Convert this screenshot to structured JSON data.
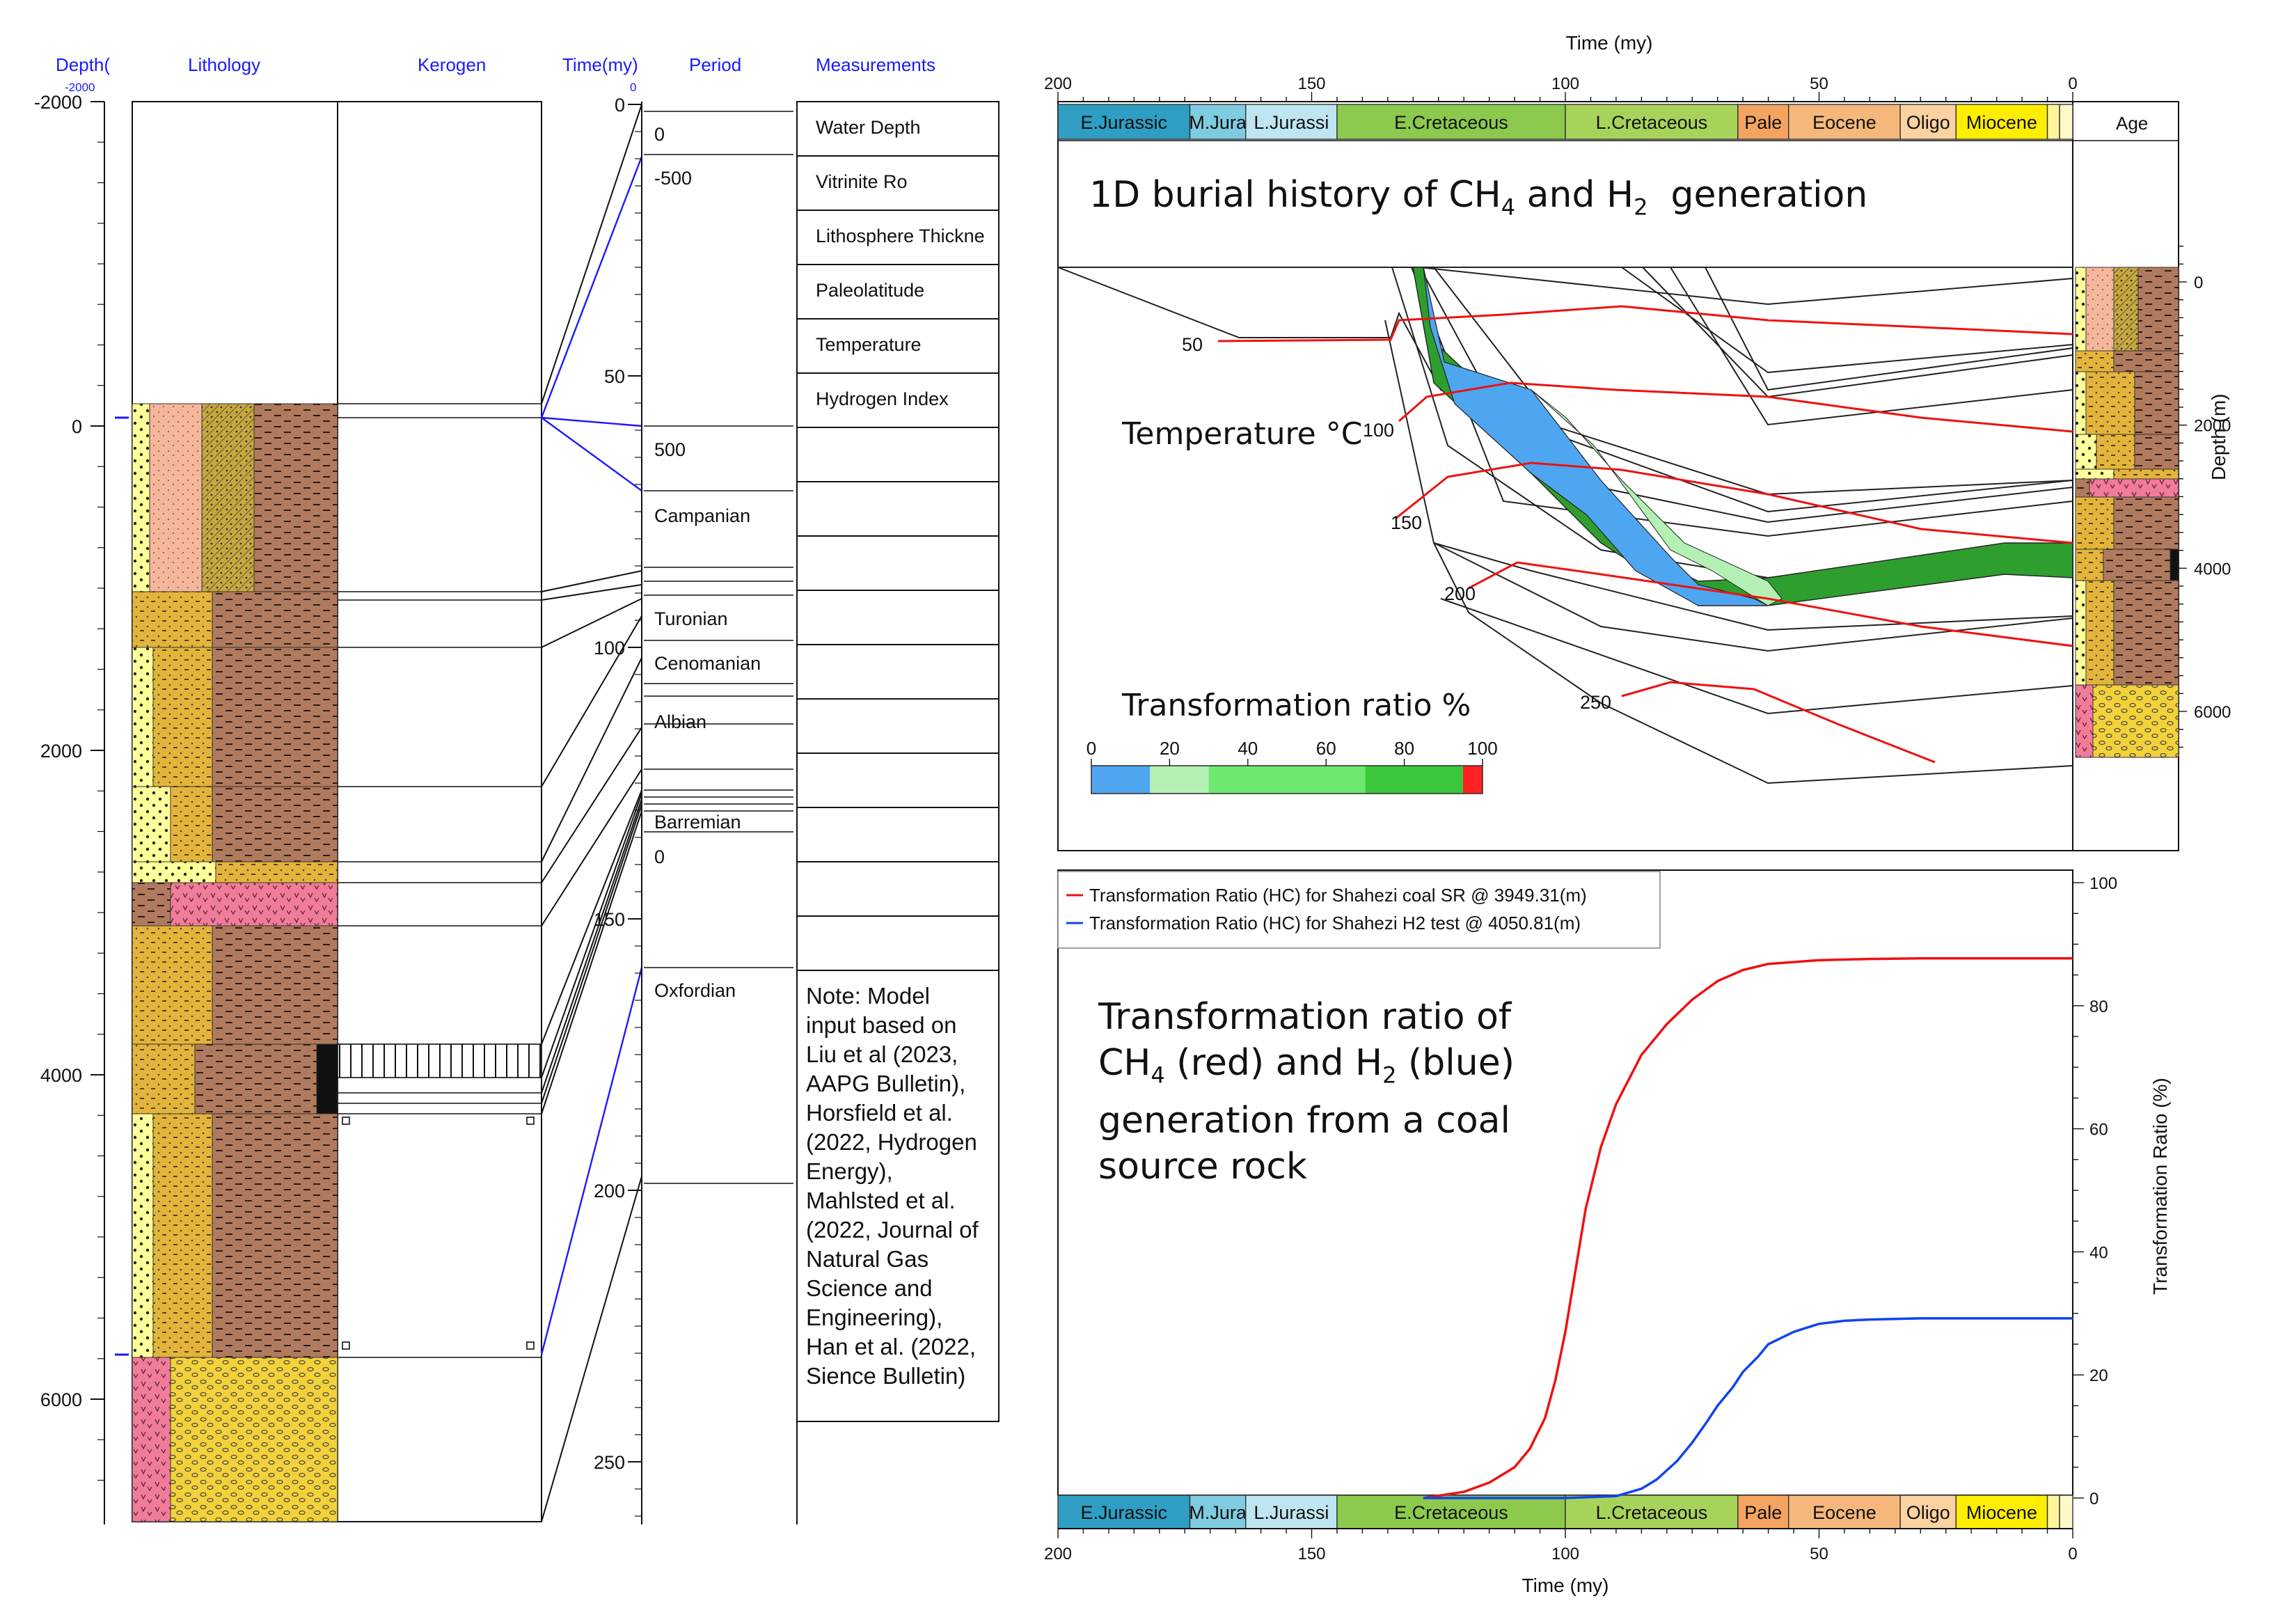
{
  "headers": {
    "depth": "Depth(",
    "depth_sub": "-2000",
    "lithology": "Lithology",
    "kerogen": "Kerogen",
    "time": "Time(my)",
    "time_sub": "0",
    "period": "Period",
    "measurements": "Measurements"
  },
  "depth_ticks": [
    "-2000",
    "0",
    "2000",
    "4000",
    "6000"
  ],
  "time_ticks": [
    "0",
    "50",
    "100",
    "150",
    "200",
    "250"
  ],
  "period_labels": [
    "0",
    "-500",
    "500",
    "Campanian",
    "Turonian",
    "Cenomanian",
    "Albian",
    "Barremian",
    "0",
    "Oxfordian"
  ],
  "measurements": [
    "Water Depth",
    "Vitrinite Ro",
    "Lithosphere Thickne",
    "Paleolatitude",
    "Temperature",
    "Hydrogen Index"
  ],
  "note": [
    "Note: Model",
    "input based on",
    "Liu et al (2023,",
    "AAPG Bulletin),",
    "Horsfield et al.",
    "(2022, Hydrogen",
    "Energy),",
    "Mahlsted et al.",
    "(2022, Journal of",
    "Natural Gas",
    "Science and",
    "Engineering),",
    "Han et al. (2022,",
    "Sience Bulletin)"
  ],
  "ages": [
    {
      "name": "E.Jurassic",
      "from": 200,
      "to": 174,
      "color": "#2e9ec4"
    },
    {
      "name": "M.Jura",
      "from": 174,
      "to": 163,
      "color": "#7fcbe0"
    },
    {
      "name": "L.Jurassi",
      "from": 163,
      "to": 145,
      "color": "#bfe6f0"
    },
    {
      "name": "E.Cretaceous",
      "from": 145,
      "to": 100,
      "color": "#8cc94c"
    },
    {
      "name": "L.Cretaceous",
      "from": 100,
      "to": 66,
      "color": "#a8d35a"
    },
    {
      "name": "Pale",
      "from": 66,
      "to": 56,
      "color": "#f4a460"
    },
    {
      "name": "Eocene",
      "from": 56,
      "to": 34,
      "color": "#f6b87a"
    },
    {
      "name": "Oligo",
      "from": 34,
      "to": 23,
      "color": "#fbd2a0"
    },
    {
      "name": "Miocene",
      "from": 23,
      "to": 5,
      "color": "#ffee00"
    },
    {
      "name": "",
      "from": 5,
      "to": 2.6,
      "color": "#fff59a"
    },
    {
      "name": "",
      "from": 2.6,
      "to": 0,
      "color": "#fff8c8"
    }
  ],
  "burial": {
    "time_axis_label": "Time (my)",
    "top_ticks": [
      "200",
      "150",
      "100",
      "50",
      "0"
    ],
    "age_label": "Age",
    "title_main": "1D burial history of CH",
    "title_sub1": "4",
    "title_mid": " and H",
    "title_sub2": "2",
    "title_end": "  generation",
    "temperature_label": "Temperature °C",
    "isotherm_labels": [
      "50",
      "100",
      "150",
      "200",
      "250"
    ],
    "tr_label": "Transformation ratio %",
    "tr_ticks": [
      "0",
      "20",
      "40",
      "60",
      "80",
      "100"
    ],
    "tr_colors": [
      "#4ea6f0",
      "#b4f0b4",
      "#6ee86e",
      "#3cc83c",
      "#2ea02e",
      "#ff2222"
    ],
    "depth_axis_label": "Depth (m)",
    "depth_ticks": [
      "0",
      "2000",
      "4000",
      "6000"
    ]
  },
  "chart_data": {
    "type": "line",
    "x_label": "Time (my)",
    "y_label": "Transformation Ratio (%)",
    "xlim": [
      200,
      0
    ],
    "ylim": [
      0,
      100
    ],
    "x_ticks": [
      "200",
      "150",
      "100",
      "50",
      "0"
    ],
    "y_ticks": [
      "0",
      "20",
      "40",
      "60",
      "80",
      "100"
    ],
    "legend_placement": "top-left",
    "series": [
      {
        "name": "Transformation Ratio (HC) for  Shahezi coal SR @ 3949.31(m)",
        "color": "#ee1111",
        "x": [
          128,
          120,
          115,
          110,
          107,
          104,
          102,
          100,
          98,
          96,
          93,
          90,
          85,
          80,
          75,
          70,
          65,
          60,
          50,
          40,
          30,
          20,
          10,
          0
        ],
        "y": [
          0,
          1,
          2.5,
          5,
          8,
          13,
          19,
          27,
          37,
          47,
          57,
          64,
          72,
          77,
          81,
          84,
          85.8,
          86.8,
          87.4,
          87.6,
          87.7,
          87.7,
          87.7,
          87.7
        ]
      },
      {
        "name": "Transformation Ratio (HC) for  Shahezi H2 test @ 4050.81(m)",
        "color": "#1144ee",
        "x": [
          128,
          100,
          90,
          85,
          82,
          78,
          75,
          72,
          70,
          67,
          65,
          62,
          60,
          55,
          50,
          45,
          40,
          30,
          20,
          10,
          0
        ],
        "y": [
          0,
          0,
          0.3,
          1.5,
          3,
          6,
          9,
          12.5,
          15,
          18,
          20.5,
          23,
          25,
          27,
          28.3,
          28.8,
          29,
          29.2,
          29.2,
          29.2,
          29.2
        ]
      }
    ],
    "annotation_line1_a": "Transformation ratio of",
    "annotation_line2_a": "CH",
    "annotation_line2_sub": "4",
    "annotation_line2_b": " (red) and H",
    "annotation_line2_sub2": "2",
    "annotation_line2_c": " (blue)",
    "annotation_line3": "generation from a coal",
    "annotation_line4": "source rock"
  }
}
